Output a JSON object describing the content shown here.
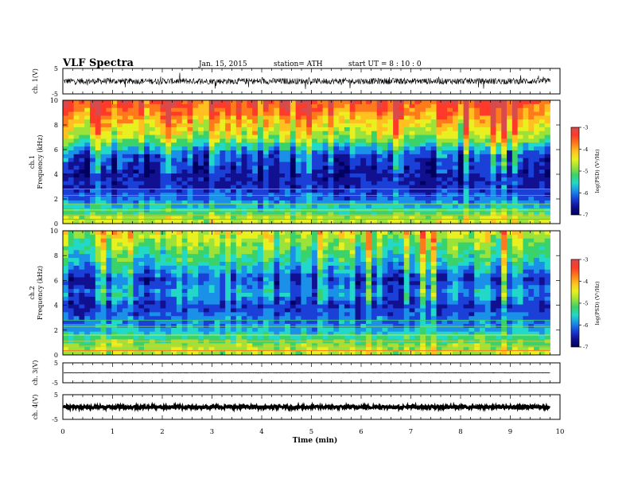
{
  "header": {
    "title": "VLF Spectra",
    "date": "Jan. 15, 2015",
    "station": "station= ATH",
    "start": "start  UT =   8 : 10 : 0"
  },
  "colorbar": {
    "label": "log(PSD) (V²/Hz)",
    "ticks": [
      "-3",
      "-4",
      "-5",
      "-6",
      "-7"
    ],
    "colors": [
      "#d94a4a",
      "#ff3a2a",
      "#ff7a1a",
      "#ffc020",
      "#e8f020",
      "#9be23a",
      "#3ad26a",
      "#22d8c8",
      "#1a90e8",
      "#1a40d8",
      "#101090",
      "#000060"
    ]
  },
  "chart_data": [
    {
      "type": "line",
      "panel": "ch1-waveform",
      "ylabel": "ch. 1(V)",
      "ylim": [
        -5,
        5
      ],
      "yticks": [
        "5",
        "-5"
      ],
      "xlim": [
        0,
        10
      ],
      "description_values": {
        "mean": 0,
        "amplitude_typical": 1.2,
        "amplitude_spikes": 2.5
      }
    },
    {
      "type": "heatmap",
      "panel": "ch1-spectrogram",
      "ylabel_line1": "ch.1",
      "ylabel_line2": "Frequency (kHz)",
      "ylim": [
        0,
        10
      ],
      "yticks": [
        "10",
        "8",
        "6",
        "4",
        "2",
        "0"
      ],
      "xlim": [
        0,
        9.8
      ],
      "zlim": [
        -7,
        -3
      ],
      "z_by_freq_kHz": [
        {
          "f": 10,
          "z": -3.4
        },
        {
          "f": 9,
          "z": -3.8
        },
        {
          "f": 8,
          "z": -4.3
        },
        {
          "f": 7,
          "z": -4.8
        },
        {
          "f": 6.3,
          "z": -5.5
        },
        {
          "f": 5.5,
          "z": -6.3
        },
        {
          "f": 4,
          "z": -6.6
        },
        {
          "f": 3,
          "z": -6.5
        },
        {
          "f": 2,
          "z": -6.1
        },
        {
          "f": 1,
          "z": -5.4
        },
        {
          "f": 0.3,
          "z": -4.6
        }
      ]
    },
    {
      "type": "heatmap",
      "panel": "ch2-spectrogram",
      "ylabel_line1": "ch.2",
      "ylabel_line2": "Frequency (kHz)",
      "ylim": [
        0,
        10
      ],
      "yticks": [
        "10",
        "8",
        "6",
        "4",
        "2",
        "0"
      ],
      "xlim": [
        0,
        9.8
      ],
      "zlim": [
        -7,
        -3
      ],
      "z_by_freq_kHz": [
        {
          "f": 10,
          "z": -4.5
        },
        {
          "f": 9,
          "z": -4.9
        },
        {
          "f": 8,
          "z": -5.3
        },
        {
          "f": 7,
          "z": -5.7
        },
        {
          "f": 6,
          "z": -6.3
        },
        {
          "f": 5,
          "z": -5.8
        },
        {
          "f": 4,
          "z": -6.4
        },
        {
          "f": 3,
          "z": -6.1
        },
        {
          "f": 2,
          "z": -5.8
        },
        {
          "f": 1,
          "z": -5.0
        },
        {
          "f": 0.3,
          "z": -4.7
        }
      ]
    },
    {
      "type": "line",
      "panel": "ch3-waveform",
      "ylabel": "ch. 3(V)",
      "ylim": [
        -5,
        5
      ],
      "yticks": [
        "5",
        "-5"
      ],
      "xlim": [
        0,
        10
      ],
      "description_values": {
        "mean": 0,
        "amplitude_typical": 0.1
      }
    },
    {
      "type": "line",
      "panel": "ch4-waveform",
      "ylabel": "ch. 4(V)",
      "ylim": [
        -5,
        5
      ],
      "yticks": [
        "5",
        "-5"
      ],
      "xlim": [
        0,
        10
      ],
      "description_values": {
        "mean": 0,
        "amplitude_typical": 0.6
      }
    }
  ],
  "x_axis": {
    "label": "Time  (min)",
    "ticks": [
      "0",
      "1",
      "2",
      "3",
      "4",
      "5",
      "6",
      "7",
      "8",
      "9",
      "10"
    ],
    "range": [
      0,
      10
    ]
  }
}
